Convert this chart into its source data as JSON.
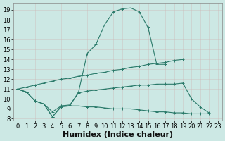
{
  "xlabel": "Humidex (Indice chaleur)",
  "background_color": "#cce8e4",
  "line_color": "#2a7a6a",
  "grid_color": "#b8d8d4",
  "xlim": [
    -0.5,
    23.5
  ],
  "ylim": [
    7.8,
    19.7
  ],
  "xticks": [
    0,
    1,
    2,
    3,
    4,
    5,
    6,
    7,
    8,
    9,
    10,
    11,
    12,
    13,
    14,
    15,
    16,
    17,
    18,
    19,
    20,
    21,
    22,
    23
  ],
  "yticks": [
    8,
    9,
    10,
    11,
    12,
    13,
    14,
    15,
    16,
    17,
    18,
    19
  ],
  "curve1_x": [
    0,
    1,
    2,
    3,
    4,
    5,
    6,
    7,
    8,
    9,
    10,
    11,
    12,
    13,
    14,
    15,
    16,
    17
  ],
  "curve1_y": [
    11.0,
    10.7,
    9.8,
    9.5,
    8.2,
    9.2,
    9.3,
    10.7,
    14.6,
    15.5,
    17.5,
    18.8,
    19.1,
    19.2,
    18.8,
    17.2,
    13.5,
    13.5
  ],
  "curve2_x": [
    0,
    1,
    2,
    3,
    4,
    5,
    6,
    7,
    8,
    9,
    10,
    11,
    12,
    13,
    14,
    15,
    16,
    17,
    18,
    19,
    20,
    21,
    22
  ],
  "curve2_y": [
    11.0,
    10.7,
    9.8,
    9.5,
    8.2,
    9.3,
    9.3,
    9.3,
    9.2,
    9.2,
    9.1,
    9.0,
    9.0,
    9.0,
    8.9,
    8.8,
    8.7,
    8.7,
    8.6,
    8.6,
    8.5,
    8.5,
    8.5
  ],
  "curve3_x": [
    0,
    1,
    2,
    3,
    4,
    5,
    6,
    7,
    8,
    9,
    10,
    11,
    12,
    13,
    14,
    15,
    16,
    17,
    18,
    19
  ],
  "curve3_y": [
    11.0,
    11.2,
    11.4,
    11.6,
    11.8,
    12.0,
    12.1,
    12.3,
    12.4,
    12.6,
    12.7,
    12.9,
    13.0,
    13.2,
    13.3,
    13.5,
    13.6,
    13.7,
    13.9,
    14.0
  ],
  "curve4_x": [
    0,
    1,
    2,
    3,
    4,
    5,
    6,
    7,
    8,
    9,
    10,
    11,
    12,
    13,
    14,
    15,
    16,
    17,
    18,
    19,
    20,
    21,
    22
  ],
  "curve4_y": [
    11.0,
    10.7,
    9.8,
    9.5,
    8.7,
    9.3,
    9.4,
    10.6,
    10.8,
    10.9,
    11.0,
    11.1,
    11.2,
    11.3,
    11.4,
    11.4,
    11.5,
    11.5,
    11.5,
    11.6,
    10.0,
    9.2,
    8.6
  ],
  "fontsize_xlabel": 8,
  "fontsize_ticks": 6
}
